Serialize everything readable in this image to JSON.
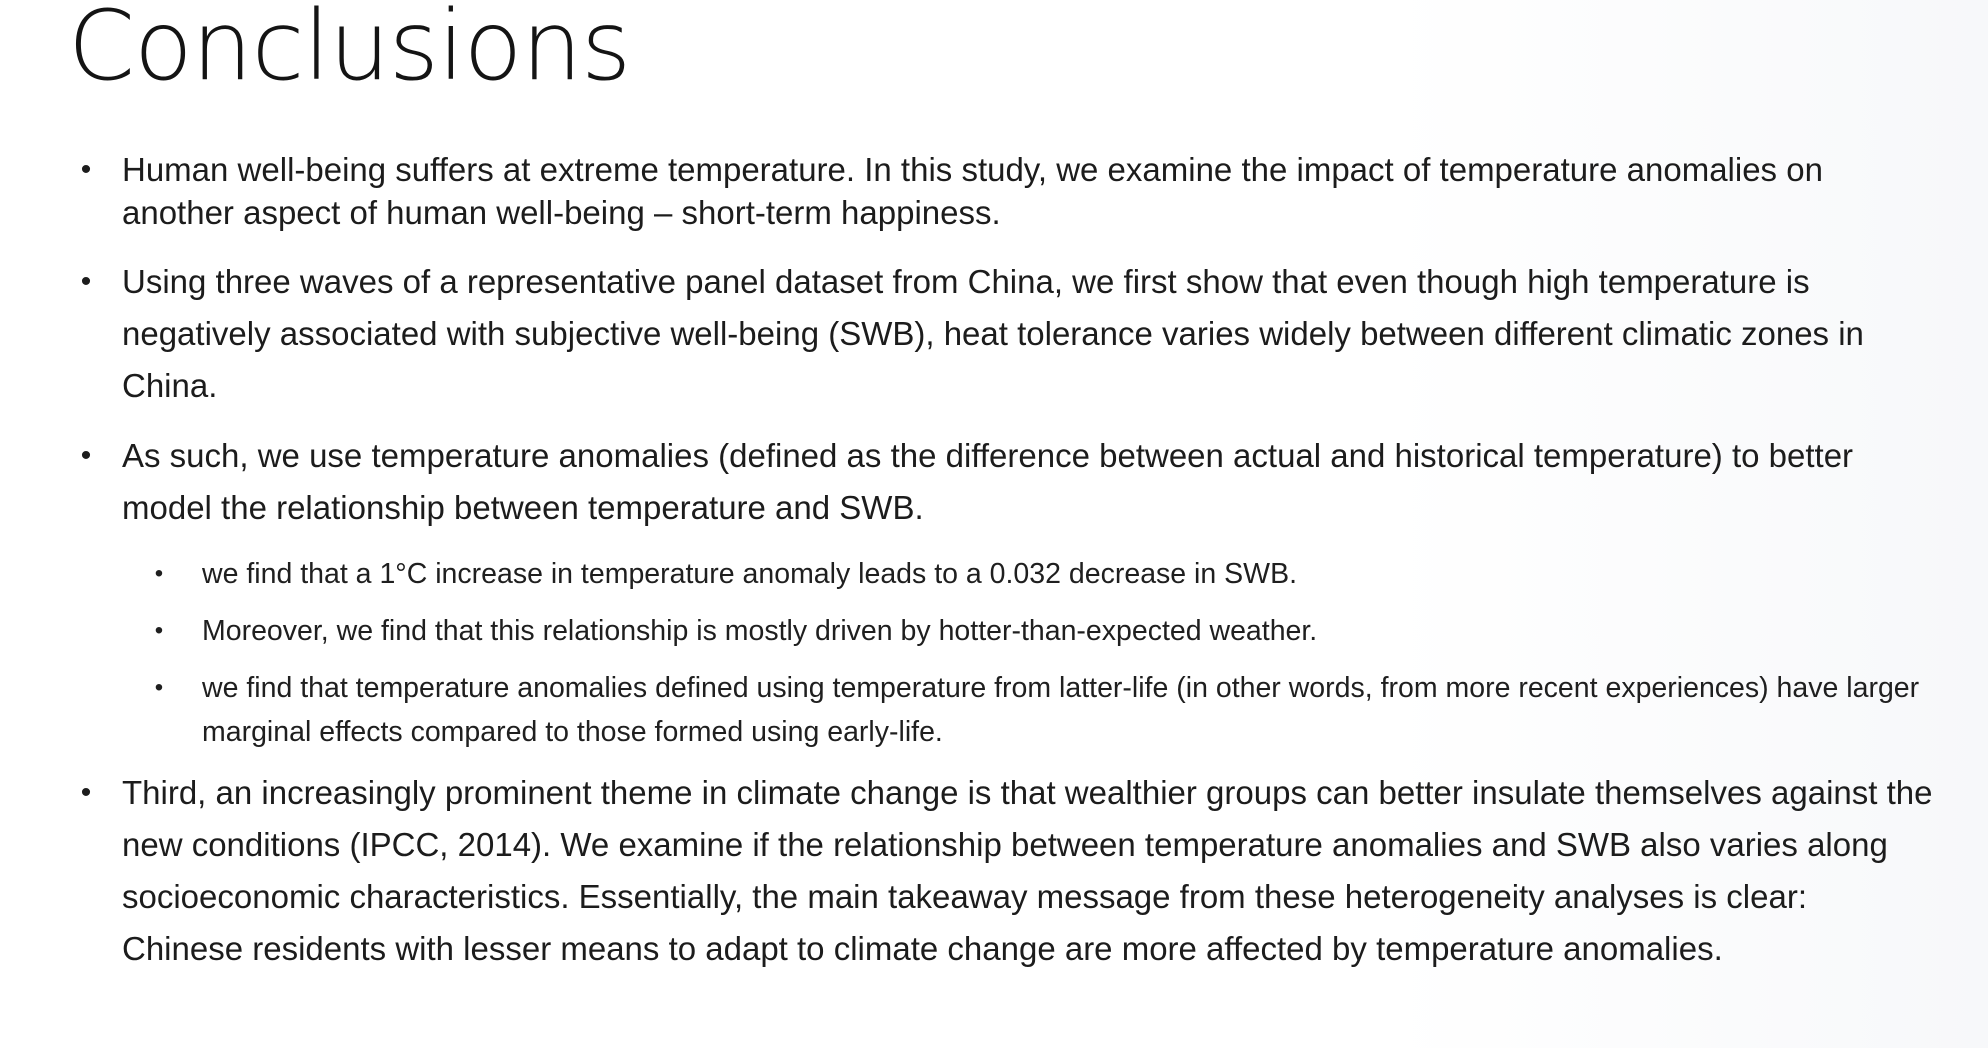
{
  "slide": {
    "title": "Conclusions",
    "bullets": [
      {
        "text": "Human well-being suffers at extreme temperature. In this study, we examine the impact of temperature anomalies on another aspect of human well-being – short-term happiness."
      },
      {
        "text": "Using three waves of a representative panel dataset from China, we first show that even though high temperature is negatively associated with subjective well-being (SWB), heat tolerance varies widely between different climatic zones in China."
      },
      {
        "text": "As such, we use temperature anomalies (defined as the difference between actual and historical temperature) to better model the relationship between temperature and SWB.",
        "sub": [
          "we find that a 1°C increase in temperature anomaly leads to a 0.032 decrease in SWB.",
          "Moreover, we find that this relationship is mostly driven by hotter-than-expected weather.",
          "we find that temperature anomalies defined using temperature from latter-life (in other words, from more recent experiences) have larger marginal effects compared to those formed using early-life."
        ]
      },
      {
        "text": "Third, an increasingly prominent theme in climate change is that wealthier groups can better insulate themselves against the new conditions (IPCC, 2014). We examine if the relationship between temperature anomalies and SWB also varies along socioeconomic characteristics. Essentially, the main takeaway message from these heterogeneity analyses is clear: Chinese residents with lesser means to adapt to climate change are more affected by temperature anomalies."
      }
    ],
    "bullet_symbol": "•"
  }
}
